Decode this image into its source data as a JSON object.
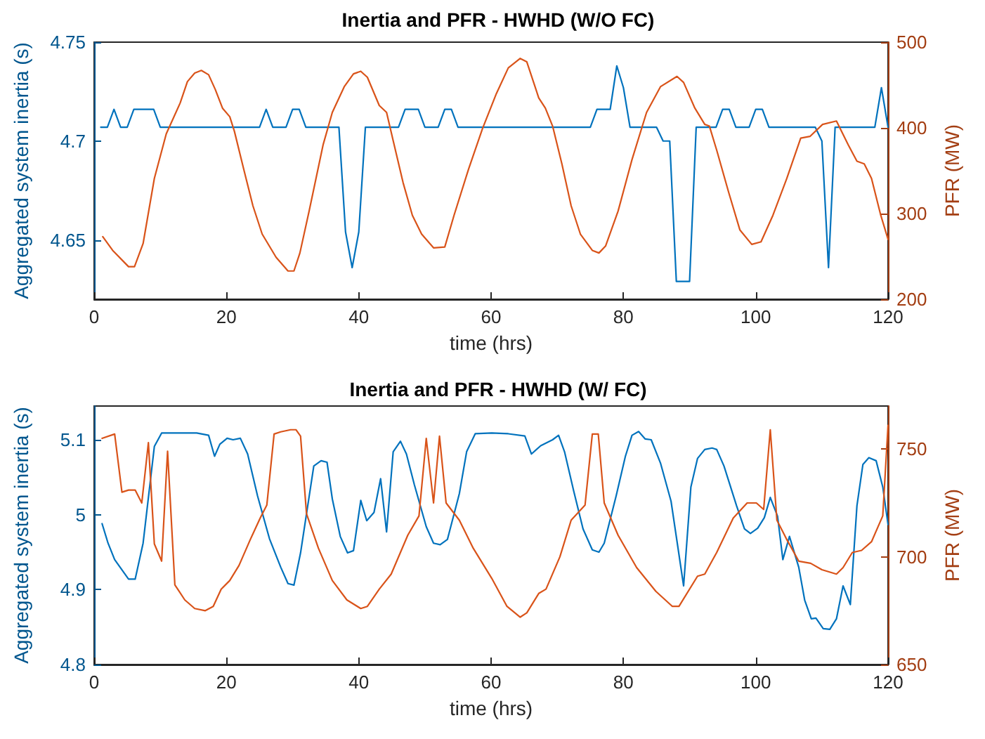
{
  "chart_data": [
    {
      "type": "line",
      "title": "Inertia and PFR - HWHD (W/O FC)",
      "xlabel": "time (hrs)",
      "ylabel": "Aggregated system inertia (s)",
      "y2label": "PFR (MW)",
      "xlim": [
        0,
        120
      ],
      "xticks": [
        0,
        20,
        40,
        60,
        80,
        100,
        120
      ],
      "ylim": [
        4.62,
        4.75
      ],
      "yticks": [
        4.65,
        4.7,
        4.75
      ],
      "y2lim": [
        200,
        500
      ],
      "y2ticks": [
        200,
        300,
        400,
        500
      ],
      "grid": false,
      "marker": "none",
      "line_style": "solid",
      "series": [
        {
          "color": "#0072bd",
          "x": [
            1,
            2,
            3,
            4,
            5,
            6,
            9,
            10,
            25,
            26,
            27,
            29,
            30,
            31,
            32,
            37,
            38,
            39,
            40,
            41,
            46,
            47,
            49,
            50,
            52,
            53,
            54,
            55,
            75,
            76,
            78,
            79,
            80,
            81,
            85,
            86,
            87,
            88,
            90,
            91,
            94,
            95,
            96,
            97,
            99,
            100,
            101,
            102,
            109,
            110,
            111,
            112,
            118,
            119,
            120
          ],
          "values": [
            4.707,
            4.707,
            4.716,
            4.707,
            4.707,
            4.716,
            4.716,
            4.707,
            4.707,
            4.716,
            4.707,
            4.707,
            4.716,
            4.716,
            4.707,
            4.707,
            4.654,
            4.636,
            4.654,
            4.707,
            4.707,
            4.716,
            4.716,
            4.707,
            4.707,
            4.716,
            4.716,
            4.707,
            4.707,
            4.716,
            4.716,
            4.738,
            4.727,
            4.707,
            4.707,
            4.7,
            4.7,
            4.629,
            4.629,
            4.707,
            4.707,
            4.716,
            4.716,
            4.707,
            4.707,
            4.716,
            4.716,
            4.707,
            4.707,
            4.7,
            4.636,
            4.707,
            4.707,
            4.727,
            4.707
          ]
        },
        {
          "color": "#d95319",
          "axis": "y2",
          "x": [
            1.3,
            2.8,
            5.2,
            6.1,
            7.4,
            9.1,
            10.9,
            13,
            14.1,
            15.2,
            16.2,
            17.3,
            18.3,
            19.4,
            20.5,
            21.2,
            22.6,
            24,
            25.4,
            27.5,
            29.3,
            30.2,
            31.1,
            32.5,
            34.6,
            36,
            37.8,
            39.2,
            40.3,
            41.3,
            43.1,
            44.2,
            45.2,
            46.7,
            48.1,
            49.5,
            51.3,
            53,
            54.4,
            56.6,
            58.7,
            60.8,
            62.6,
            64.4,
            65.4,
            67.2,
            68.2,
            69.3,
            70.7,
            72.1,
            73.5,
            75.3,
            76.3,
            77.3,
            79.2,
            81.3,
            83.5,
            85.6,
            88.1,
            89.1,
            90.8,
            92.3,
            93,
            94.1,
            95.9,
            97.6,
            99.4,
            100.8,
            102.6,
            104.7,
            106.8,
            108.2,
            110.1,
            112.2,
            114,
            115.3,
            116.4,
            117.5,
            118.9,
            120
          ],
          "values": [
            273,
            257,
            238,
            238,
            265,
            341,
            393,
            429,
            454,
            464,
            467,
            462,
            445,
            423,
            413,
            396,
            352,
            309,
            276,
            249,
            233,
            233,
            254,
            303,
            380,
            418,
            448,
            463,
            466,
            459,
            426,
            418,
            385,
            336,
            298,
            276,
            260,
            261,
            298,
            352,
            399,
            440,
            470,
            481,
            477,
            435,
            423,
            402,
            358,
            309,
            276,
            257,
            254,
            262,
            303,
            363,
            418,
            448,
            460,
            453,
            423,
            404,
            402,
            374,
            325,
            281,
            264,
            267,
            298,
            341,
            388,
            390,
            404,
            408,
            380,
            361,
            358,
            341,
            298,
            270
          ]
        }
      ]
    },
    {
      "type": "line",
      "title": "Inertia and PFR - HWHD (W/ FC)",
      "xlabel": "time (hrs)",
      "ylabel": "Aggregated system inertia (s)",
      "y2label": "PFR (MW)",
      "xlim": [
        0,
        120
      ],
      "xticks": [
        0,
        20,
        40,
        60,
        80,
        100,
        120
      ],
      "ylim": [
        4.8,
        5.145
      ],
      "yticks": [
        4.8,
        4.9,
        5,
        5.1
      ],
      "y2lim": [
        650,
        770
      ],
      "y2ticks": [
        650,
        700,
        750
      ],
      "grid": false,
      "marker": "none",
      "line_style": "solid",
      "series": [
        {
          "color": "#0072bd",
          "x": [
            1.2,
            2.1,
            3.1,
            5.2,
            6.2,
            7.4,
            9.1,
            10.2,
            12.7,
            15.5,
            17.3,
            18.2,
            19,
            20.1,
            21,
            22.1,
            23.2,
            24.7,
            26.5,
            28.2,
            29.3,
            30.2,
            31.2,
            33.2,
            34.3,
            35.2,
            36,
            37.2,
            38.3,
            39.2,
            40.3,
            41.2,
            42.3,
            43.3,
            44.2,
            45.2,
            46.3,
            47.2,
            48.4,
            50.2,
            51.3,
            52.3,
            53.4,
            55.2,
            56.3,
            57.6,
            60.1,
            62.6,
            65.1,
            66.1,
            67.5,
            69.3,
            70.2,
            71.1,
            72.5,
            73.9,
            75.3,
            76.3,
            77.1,
            78.9,
            80.3,
            81.3,
            82.3,
            83.3,
            84.2,
            85.6,
            87.2,
            89.1,
            90.2,
            91.2,
            92.3,
            93.4,
            94.1,
            95.2,
            97.1,
            98.3,
            99.2,
            100.3,
            101.3,
            102.2,
            103.3,
            104.1,
            105.1,
            106.5,
            107.4,
            108.4,
            109.1,
            110.2,
            111.2,
            112.2,
            113.2,
            114.3,
            115.3,
            116.2,
            117.1,
            118.2,
            119.2,
            120
          ],
          "values": [
            4.988,
            4.962,
            4.94,
            4.914,
            4.914,
            4.962,
            5.091,
            5.109,
            5.109,
            5.109,
            5.106,
            5.078,
            5.094,
            5.102,
            5.1,
            5.102,
            5.081,
            5.025,
            4.968,
            4.93,
            4.908,
            4.906,
            4.949,
            5.065,
            5.072,
            5.07,
            5.021,
            4.971,
            4.949,
            4.952,
            5.019,
            4.992,
            5.003,
            5.048,
            4.977,
            5.084,
            5.098,
            5.081,
            5.04,
            4.984,
            4.962,
            4.96,
            4.967,
            5.028,
            5.084,
            5.108,
            5.109,
            5.108,
            5.105,
            5.081,
            5.092,
            5.1,
            5.106,
            5.084,
            5.031,
            4.981,
            4.953,
            4.95,
            4.962,
            5.025,
            5.078,
            5.106,
            5.111,
            5.101,
            5.1,
            5.069,
            5.018,
            4.905,
            5.037,
            5.075,
            5.087,
            5.089,
            5.087,
            5.065,
            5.012,
            4.981,
            4.975,
            4.982,
            4.996,
            5.023,
            4.998,
            4.94,
            4.971,
            4.93,
            4.886,
            4.861,
            4.862,
            4.848,
            4.847,
            4.861,
            4.905,
            4.88,
            5.012,
            5.067,
            5.076,
            5.072,
            5.037,
            4.987
          ]
        },
        {
          "color": "#d95319",
          "axis": "y2",
          "x": [
            1.2,
            3.1,
            4.2,
            5.2,
            6.2,
            7.2,
            8.2,
            9.1,
            10.2,
            11.1,
            12.2,
            13.7,
            15.2,
            16.8,
            18,
            19.2,
            20.5,
            21.9,
            23.6,
            25.1,
            26.1,
            27.2,
            28.2,
            29.7,
            30.5,
            31.2,
            32.1,
            33.9,
            36,
            38.2,
            40.3,
            41.3,
            43.1,
            44.9,
            47.4,
            49.1,
            50.2,
            51.3,
            52.2,
            53.2,
            55.2,
            57.3,
            60.1,
            62.4,
            64.4,
            65.4,
            67.2,
            68.3,
            70.4,
            72.1,
            74.2,
            75.3,
            76.2,
            77.1,
            79.2,
            82,
            84.9,
            87.4,
            88.4,
            91.2,
            92.3,
            94.1,
            96.6,
            98.7,
            100.1,
            101.2,
            102.2,
            103.2,
            104.7,
            106.5,
            108.3,
            110,
            112.2,
            113.2,
            114.6,
            116,
            117.5,
            119.2,
            120
          ],
          "values": [
            755,
            757,
            730,
            731,
            731,
            725,
            753,
            706,
            698,
            749,
            687,
            680,
            676,
            675,
            677,
            685,
            689,
            696,
            708,
            718,
            724,
            757,
            758,
            759,
            759,
            756,
            720,
            704,
            689,
            680,
            676,
            677,
            685,
            692,
            710,
            719,
            755,
            725,
            756,
            725,
            717,
            704,
            690,
            677,
            672,
            674,
            683,
            685,
            700,
            717,
            724,
            757,
            757,
            725,
            710,
            695,
            684,
            677,
            677,
            691,
            692,
            702,
            718,
            725,
            725,
            722,
            759,
            717,
            708,
            698,
            697,
            694,
            692,
            695,
            702,
            703,
            707,
            719,
            761
          ]
        }
      ]
    }
  ]
}
